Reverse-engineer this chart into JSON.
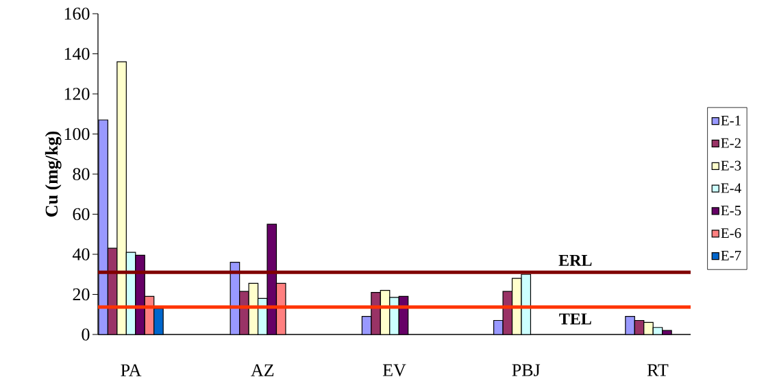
{
  "chart_data": {
    "type": "bar",
    "ylabel": "Cu (mg/kg)",
    "categories": [
      "PA",
      null,
      "AZ",
      null,
      "EV",
      null,
      "PBJ",
      null,
      "RT"
    ],
    "series": [
      {
        "name": "E-1",
        "color": "#9999ff",
        "values": [
          107,
          null,
          36,
          null,
          9,
          null,
          7,
          null,
          9
        ]
      },
      {
        "name": "E-2",
        "color": "#993366",
        "values": [
          43,
          null,
          21.5,
          null,
          21,
          null,
          21.5,
          null,
          7
        ]
      },
      {
        "name": "E-3",
        "color": "#ffffcc",
        "values": [
          136,
          null,
          25.5,
          null,
          22,
          null,
          28,
          null,
          6
        ]
      },
      {
        "name": "E-4",
        "color": "#ccffff",
        "values": [
          41,
          null,
          18,
          null,
          18.5,
          null,
          30,
          null,
          3.5
        ]
      },
      {
        "name": "E-5",
        "color": "#660066",
        "values": [
          39.5,
          null,
          55,
          null,
          19,
          null,
          null,
          null,
          2
        ]
      },
      {
        "name": "E-6",
        "color": "#ff8080",
        "values": [
          19,
          null,
          25.5,
          null,
          null,
          null,
          null,
          null,
          null
        ]
      },
      {
        "name": "E-7",
        "color": "#0066cc",
        "values": [
          13,
          null,
          null,
          null,
          null,
          null,
          null,
          null,
          null
        ]
      }
    ],
    "ylim": [
      0,
      160
    ],
    "yticks": [
      0,
      20,
      40,
      60,
      80,
      100,
      120,
      140,
      160
    ],
    "ref_lines": [
      {
        "axis": "y",
        "value": 31,
        "label": "ERL",
        "color": "#800000"
      },
      {
        "axis": "y",
        "value": 13.7,
        "label": "TEL",
        "color": "#ff3300"
      }
    ],
    "legend": "right",
    "grid": false
  }
}
